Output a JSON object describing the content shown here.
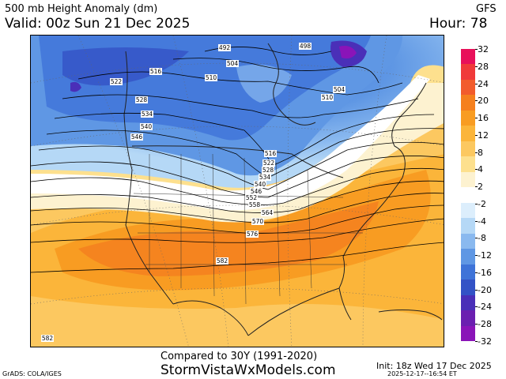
{
  "header": {
    "title": "500 mb Height Anomaly (dm)",
    "valid": "Valid: 00z Sun 21 Dec 2025",
    "model": "GFS",
    "hour": "Hour: 78"
  },
  "colorbar": {
    "labels": [
      "32",
      "28",
      "24",
      "20",
      "16",
      "12",
      "8",
      "4",
      "2",
      "-2",
      "-4",
      "-8",
      "-12",
      "-16",
      "-20",
      "-24",
      "-28",
      "-32"
    ],
    "colors": [
      "#e8105a",
      "#f03a3a",
      "#f25c2c",
      "#f5801e",
      "#f89c22",
      "#fbb53a",
      "#fcc860",
      "#fde08e",
      "#fdf2d0",
      "#ffffff",
      "#dceefc",
      "#b5d8f6",
      "#8ab9ef",
      "#5f97e4",
      "#3e73d8",
      "#3352c6",
      "#4a2fb8",
      "#6b1fb0",
      "#8a14b8"
    ]
  },
  "contour_labels": [
    {
      "text": "492"
    },
    {
      "text": "498"
    },
    {
      "text": "504"
    },
    {
      "text": "504"
    },
    {
      "text": "510"
    },
    {
      "text": "510"
    },
    {
      "text": "516"
    },
    {
      "text": "522"
    },
    {
      "text": "528"
    },
    {
      "text": "534"
    },
    {
      "text": "540"
    },
    {
      "text": "546"
    },
    {
      "text": "516"
    },
    {
      "text": "522"
    },
    {
      "text": "528"
    },
    {
      "text": "534"
    },
    {
      "text": "540"
    },
    {
      "text": "546"
    },
    {
      "text": "552"
    },
    {
      "text": "558"
    },
    {
      "text": "564"
    },
    {
      "text": "570"
    },
    {
      "text": "576"
    },
    {
      "text": "582"
    },
    {
      "text": "582"
    }
  ],
  "footer": {
    "compared": "Compared to 30Y (1991-2020)",
    "site": "StormVistaWxModels.com",
    "init": "Init: 18z Wed 17 Dec 2025",
    "generated": "2025-12-17--16:54 ET",
    "grads": "GrADS: COLA/IGES"
  }
}
